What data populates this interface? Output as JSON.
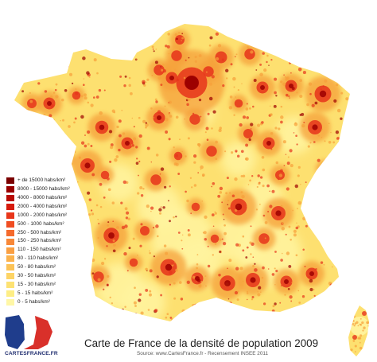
{
  "title": "Carte de France de la densité de population 2009",
  "source": "Source: www.CartesFrance.fr - Recensement INSEE 2011",
  "logo_text": "CARTESFRANCE.FR",
  "legend": [
    {
      "label": "+ de 15000 habs/km²",
      "color": "#7a0000"
    },
    {
      "label": "8000 - 15000 habs/km²",
      "color": "#990000"
    },
    {
      "label": "4000 - 8000 habs/km²",
      "color": "#b80b05"
    },
    {
      "label": "2000 - 4000 habs/km²",
      "color": "#d61a0c"
    },
    {
      "label": "1000 - 2000 habs/km²",
      "color": "#e8361a"
    },
    {
      "label": "500 - 1000 habs/km²",
      "color": "#f04d22"
    },
    {
      "label": "250 - 500 habs/km²",
      "color": "#f56a2c"
    },
    {
      "label": "150 - 250 habs/km²",
      "color": "#f88838"
    },
    {
      "label": "110 - 150 habs/km²",
      "color": "#fa9f42"
    },
    {
      "label": "80 - 110 habs/km²",
      "color": "#fbb24c"
    },
    {
      "label": "50 - 80 habs/km²",
      "color": "#fcc357"
    },
    {
      "label": "30 - 50 habs/km²",
      "color": "#fdd465"
    },
    {
      "label": "15 - 30 habs/km²",
      "color": "#fde273"
    },
    {
      "label": "5 - 15 habs/km²",
      "color": "#feee85"
    },
    {
      "label": "0 - 5 habs/km²",
      "color": "#fff7a6"
    }
  ],
  "map_colors": {
    "base": "#fde070",
    "sparse": "#fff4a0",
    "medium": "#f6a03a",
    "dense": "#e6341b",
    "core": "#9c0000"
  },
  "logo_colors": {
    "blue": "#1f3d8c",
    "white": "#ffffff",
    "red": "#d9302a",
    "text": "#1d2b6e"
  }
}
